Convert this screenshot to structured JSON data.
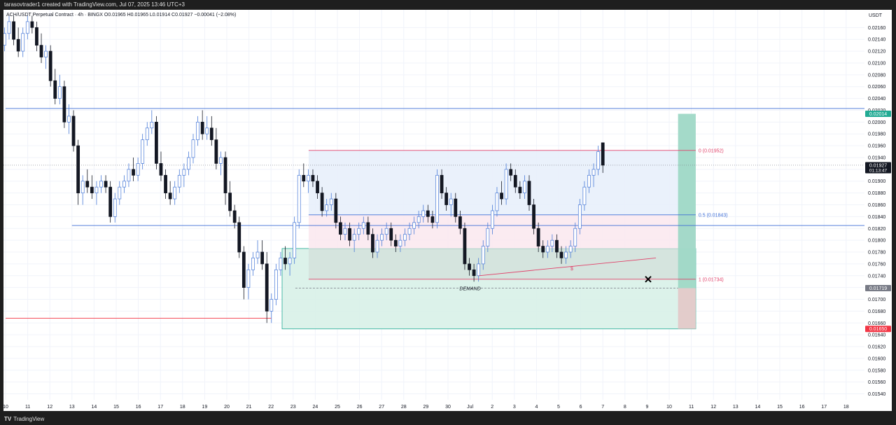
{
  "header": {
    "caption": "tarasovtrader1 created with TradingView.com, Jul 07, 2025 13:46 UTC+3"
  },
  "legend": {
    "text": "ACH/USDT Perpetual Contract · 4h · BINGX  O0.01965  H0.01965  L0.01914  C0.01927  −0.00041 (−2.08%)"
  },
  "footer": {
    "brand": "TradingView",
    "logo": "tradingview-logo-icon"
  },
  "colors": {
    "up": "#4a7bd8",
    "down": "#131722",
    "red": "#f23645",
    "blue": "#3f6fd6",
    "demand": "#d8f1e8",
    "premium": "#e8effb",
    "green_badge": "#22ab94",
    "pink_line": "#e0426a"
  },
  "chart_data": {
    "type": "candlestick",
    "symbol": "ACH/USDT",
    "currency_label": "USDT",
    "ylim": [
      0.0153,
      0.0219
    ],
    "y_ticks": [
      "0.02160",
      "0.02140",
      "0.02120",
      "0.02100",
      "0.02080",
      "0.02060",
      "0.02040",
      "0.02020",
      "0.02000",
      "0.01980",
      "0.01960",
      "0.01940",
      "0.01920",
      "0.01900",
      "0.01880",
      "0.01860",
      "0.01840",
      "0.01820",
      "0.01800",
      "0.01780",
      "0.01760",
      "0.01740",
      "0.01720",
      "0.01700",
      "0.01680",
      "0.01660",
      "0.01640",
      "0.01620",
      "0.01600",
      "0.01580",
      "0.01560",
      "0.01540"
    ],
    "x_ticks": [
      "10",
      "11",
      "12",
      "13",
      "14",
      "15",
      "16",
      "17",
      "18",
      "19",
      "20",
      "21",
      "22",
      "23",
      "24",
      "25",
      "26",
      "27",
      "28",
      "29",
      "30",
      "Jul",
      "2",
      "3",
      "4",
      "5",
      "6",
      "7",
      "8",
      "9",
      "10",
      "11",
      "12",
      "13",
      "14",
      "15",
      "16",
      "17",
      "18"
    ],
    "price_badges": [
      {
        "label": "0.02014",
        "value": 0.02014,
        "color": "#22ab94"
      },
      {
        "label": "0.01927",
        "sub": "01:13:47",
        "value": 0.01927,
        "color": "#131722"
      },
      {
        "label": "0.01719",
        "value": 0.01719,
        "color": "#787b86"
      },
      {
        "label": "0.01650",
        "value": 0.0165,
        "color": "#f23645"
      }
    ],
    "fib_labels": [
      {
        "text": "0 (0.01952)",
        "value": 0.01952,
        "color": "#e0426a"
      },
      {
        "text": "0.5 (0.01843)",
        "value": 0.01843,
        "color": "#3f6fd6"
      },
      {
        "text": "1 (0.01734)",
        "value": 0.01734,
        "color": "#e0426a"
      }
    ],
    "levels": [
      {
        "value": 0.02023,
        "from": "10",
        "to": "end",
        "color": "#3f6fd6"
      },
      {
        "value": 0.01825,
        "from": "13",
        "to": "end",
        "color": "#3f6fd6"
      },
      {
        "value": 0.01668,
        "from": "10",
        "to": "22",
        "color": "#f23645"
      }
    ],
    "zones": {
      "demand_label": "DEMAND",
      "demand_range": [
        0.0165,
        0.01786
      ],
      "premium_range": [
        0.01843,
        0.01952
      ],
      "discount_range": [
        0.01786,
        0.01843
      ],
      "position_target": 0.02014,
      "position_stop": 0.0165,
      "position_entry": 0.01719
    },
    "markers": {
      "cross": "x-mark-icon",
      "dollar": "$"
    },
    "candles": [
      [
        0.0213,
        0.0216,
        0.0212,
        0.0215
      ],
      [
        0.0215,
        0.0218,
        0.0214,
        0.0217
      ],
      [
        0.0217,
        0.0218,
        0.0213,
        0.0214
      ],
      [
        0.0214,
        0.0216,
        0.0211,
        0.0212
      ],
      [
        0.0212,
        0.0216,
        0.0211,
        0.0215
      ],
      [
        0.0215,
        0.0218,
        0.0214,
        0.0217
      ],
      [
        0.0217,
        0.0218,
        0.0215,
        0.0216
      ],
      [
        0.0216,
        0.0217,
        0.0212,
        0.0213
      ],
      [
        0.0213,
        0.0215,
        0.021,
        0.0211
      ],
      [
        0.0211,
        0.0213,
        0.0209,
        0.0212
      ],
      [
        0.0212,
        0.0213,
        0.0206,
        0.0207
      ],
      [
        0.0207,
        0.0209,
        0.0203,
        0.0204
      ],
      [
        0.0204,
        0.0208,
        0.0203,
        0.0206
      ],
      [
        0.0206,
        0.0207,
        0.0199,
        0.02
      ],
      [
        0.02,
        0.0203,
        0.0198,
        0.0201
      ],
      [
        0.0201,
        0.0202,
        0.0195,
        0.0196
      ],
      [
        0.0196,
        0.0197,
        0.0186,
        0.0188
      ],
      [
        0.0188,
        0.0191,
        0.0186,
        0.019
      ],
      [
        0.019,
        0.0192,
        0.0188,
        0.0189
      ],
      [
        0.0189,
        0.0191,
        0.0187,
        0.0188
      ],
      [
        0.0188,
        0.019,
        0.0186,
        0.0189
      ],
      [
        0.0189,
        0.0191,
        0.0188,
        0.019
      ],
      [
        0.019,
        0.0191,
        0.0188,
        0.0189
      ],
      [
        0.0189,
        0.019,
        0.0183,
        0.0184
      ],
      [
        0.0184,
        0.0188,
        0.0183,
        0.0187
      ],
      [
        0.0187,
        0.019,
        0.0186,
        0.0189
      ],
      [
        0.0189,
        0.0191,
        0.0188,
        0.019
      ],
      [
        0.019,
        0.0193,
        0.0189,
        0.0192
      ],
      [
        0.0192,
        0.0194,
        0.019,
        0.0191
      ],
      [
        0.0191,
        0.0194,
        0.019,
        0.0193
      ],
      [
        0.0193,
        0.0198,
        0.0192,
        0.0197
      ],
      [
        0.0197,
        0.02,
        0.0196,
        0.0199
      ],
      [
        0.0199,
        0.0202,
        0.0198,
        0.02
      ],
      [
        0.02,
        0.0201,
        0.0192,
        0.0193
      ],
      [
        0.0193,
        0.0195,
        0.019,
        0.0191
      ],
      [
        0.0191,
        0.0192,
        0.0187,
        0.0188
      ],
      [
        0.0188,
        0.019,
        0.0186,
        0.0187
      ],
      [
        0.0187,
        0.019,
        0.0186,
        0.0189
      ],
      [
        0.0189,
        0.0192,
        0.0188,
        0.0191
      ],
      [
        0.0191,
        0.0193,
        0.0189,
        0.0192
      ],
      [
        0.0192,
        0.0195,
        0.0191,
        0.0194
      ],
      [
        0.0194,
        0.0198,
        0.0193,
        0.0197
      ],
      [
        0.0197,
        0.0201,
        0.0196,
        0.02
      ],
      [
        0.02,
        0.0202,
        0.0197,
        0.0198
      ],
      [
        0.0198,
        0.0201,
        0.0197,
        0.0199
      ],
      [
        0.0199,
        0.0201,
        0.0196,
        0.0197
      ],
      [
        0.0197,
        0.0199,
        0.0192,
        0.0193
      ],
      [
        0.0193,
        0.0195,
        0.0191,
        0.0194
      ],
      [
        0.0194,
        0.0195,
        0.0186,
        0.0188
      ],
      [
        0.0188,
        0.019,
        0.0184,
        0.0185
      ],
      [
        0.0185,
        0.0186,
        0.0182,
        0.0183
      ],
      [
        0.0183,
        0.0184,
        0.0177,
        0.0178
      ],
      [
        0.0178,
        0.0179,
        0.017,
        0.0172
      ],
      [
        0.0172,
        0.0176,
        0.017,
        0.0175
      ],
      [
        0.0175,
        0.0178,
        0.0174,
        0.0177
      ],
      [
        0.0177,
        0.018,
        0.0176,
        0.0178
      ],
      [
        0.0178,
        0.018,
        0.0175,
        0.0176
      ],
      [
        0.0176,
        0.0178,
        0.0166,
        0.0168
      ],
      [
        0.0168,
        0.0171,
        0.0166,
        0.017
      ],
      [
        0.017,
        0.0176,
        0.0169,
        0.0175
      ],
      [
        0.0175,
        0.0178,
        0.0174,
        0.0177
      ],
      [
        0.0177,
        0.0179,
        0.0175,
        0.0176
      ],
      [
        0.0176,
        0.0178,
        0.0174,
        0.0177
      ],
      [
        0.0177,
        0.0184,
        0.0176,
        0.0183
      ],
      [
        0.0183,
        0.0192,
        0.0182,
        0.0191
      ],
      [
        0.0191,
        0.0193,
        0.0189,
        0.019
      ],
      [
        0.019,
        0.0192,
        0.0188,
        0.0191
      ],
      [
        0.0191,
        0.0192,
        0.0189,
        0.019
      ],
      [
        0.019,
        0.0191,
        0.0187,
        0.0188
      ],
      [
        0.0188,
        0.0189,
        0.0184,
        0.0185
      ],
      [
        0.0185,
        0.0187,
        0.0184,
        0.0186
      ],
      [
        0.0186,
        0.0188,
        0.0185,
        0.0187
      ],
      [
        0.0187,
        0.0188,
        0.0182,
        0.0183
      ],
      [
        0.0183,
        0.0184,
        0.018,
        0.0181
      ],
      [
        0.0181,
        0.0183,
        0.018,
        0.0182
      ],
      [
        0.0182,
        0.0183,
        0.0179,
        0.018
      ],
      [
        0.018,
        0.0182,
        0.0178,
        0.0181
      ],
      [
        0.0181,
        0.0183,
        0.018,
        0.0182
      ],
      [
        0.0182,
        0.0184,
        0.0181,
        0.0183
      ],
      [
        0.0183,
        0.0184,
        0.018,
        0.0181
      ],
      [
        0.0181,
        0.0182,
        0.0177,
        0.0178
      ],
      [
        0.0178,
        0.0181,
        0.0177,
        0.018
      ],
      [
        0.018,
        0.0182,
        0.0179,
        0.0181
      ],
      [
        0.0181,
        0.0183,
        0.018,
        0.0182
      ],
      [
        0.0182,
        0.0183,
        0.0179,
        0.018
      ],
      [
        0.018,
        0.0181,
        0.0178,
        0.0179
      ],
      [
        0.0179,
        0.0181,
        0.0178,
        0.018
      ],
      [
        0.018,
        0.0182,
        0.0179,
        0.0181
      ],
      [
        0.0181,
        0.0183,
        0.018,
        0.0182
      ],
      [
        0.0182,
        0.0184,
        0.0181,
        0.0183
      ],
      [
        0.0183,
        0.0185,
        0.0182,
        0.0184
      ],
      [
        0.0184,
        0.0186,
        0.0183,
        0.0185
      ],
      [
        0.0185,
        0.0186,
        0.0183,
        0.0184
      ],
      [
        0.0184,
        0.0185,
        0.0182,
        0.0183
      ],
      [
        0.0183,
        0.0192,
        0.0182,
        0.0191
      ],
      [
        0.0191,
        0.0192,
        0.0187,
        0.0188
      ],
      [
        0.0188,
        0.0189,
        0.0185,
        0.0186
      ],
      [
        0.0186,
        0.0188,
        0.0184,
        0.0187
      ],
      [
        0.0187,
        0.0188,
        0.0183,
        0.0184
      ],
      [
        0.0184,
        0.0185,
        0.0181,
        0.0182
      ],
      [
        0.0182,
        0.0183,
        0.0175,
        0.0176
      ],
      [
        0.0176,
        0.0177,
        0.0174,
        0.0175
      ],
      [
        0.0175,
        0.0176,
        0.0173,
        0.0174
      ],
      [
        0.0174,
        0.0177,
        0.0173,
        0.0176
      ],
      [
        0.0176,
        0.018,
        0.0175,
        0.0179
      ],
      [
        0.0179,
        0.0183,
        0.0178,
        0.0182
      ],
      [
        0.0182,
        0.0186,
        0.0181,
        0.0185
      ],
      [
        0.0185,
        0.0189,
        0.0184,
        0.0188
      ],
      [
        0.0188,
        0.019,
        0.0186,
        0.0187
      ],
      [
        0.0187,
        0.0193,
        0.0186,
        0.0192
      ],
      [
        0.0192,
        0.0193,
        0.019,
        0.0191
      ],
      [
        0.0191,
        0.0192,
        0.0188,
        0.0189
      ],
      [
        0.0189,
        0.019,
        0.0187,
        0.0188
      ],
      [
        0.0188,
        0.0191,
        0.0187,
        0.019
      ],
      [
        0.019,
        0.0191,
        0.0185,
        0.0186
      ],
      [
        0.0186,
        0.0187,
        0.0181,
        0.0182
      ],
      [
        0.0182,
        0.0183,
        0.0178,
        0.0179
      ],
      [
        0.0179,
        0.018,
        0.0177,
        0.0178
      ],
      [
        0.0178,
        0.018,
        0.0177,
        0.0179
      ],
      [
        0.0179,
        0.0181,
        0.0178,
        0.018
      ],
      [
        0.018,
        0.0181,
        0.0177,
        0.0178
      ],
      [
        0.0178,
        0.0179,
        0.0176,
        0.0177
      ],
      [
        0.0177,
        0.0179,
        0.0176,
        0.0178
      ],
      [
        0.0178,
        0.018,
        0.0177,
        0.0179
      ],
      [
        0.0179,
        0.0183,
        0.0178,
        0.0182
      ],
      [
        0.0182,
        0.0187,
        0.0181,
        0.0186
      ],
      [
        0.0186,
        0.019,
        0.0185,
        0.0189
      ],
      [
        0.0189,
        0.0192,
        0.0188,
        0.0191
      ],
      [
        0.0191,
        0.0193,
        0.0189,
        0.0192
      ],
      [
        0.0192,
        0.0196,
        0.0191,
        0.0195
      ],
      [
        0.01965,
        0.01965,
        0.01914,
        0.01927
      ]
    ]
  }
}
